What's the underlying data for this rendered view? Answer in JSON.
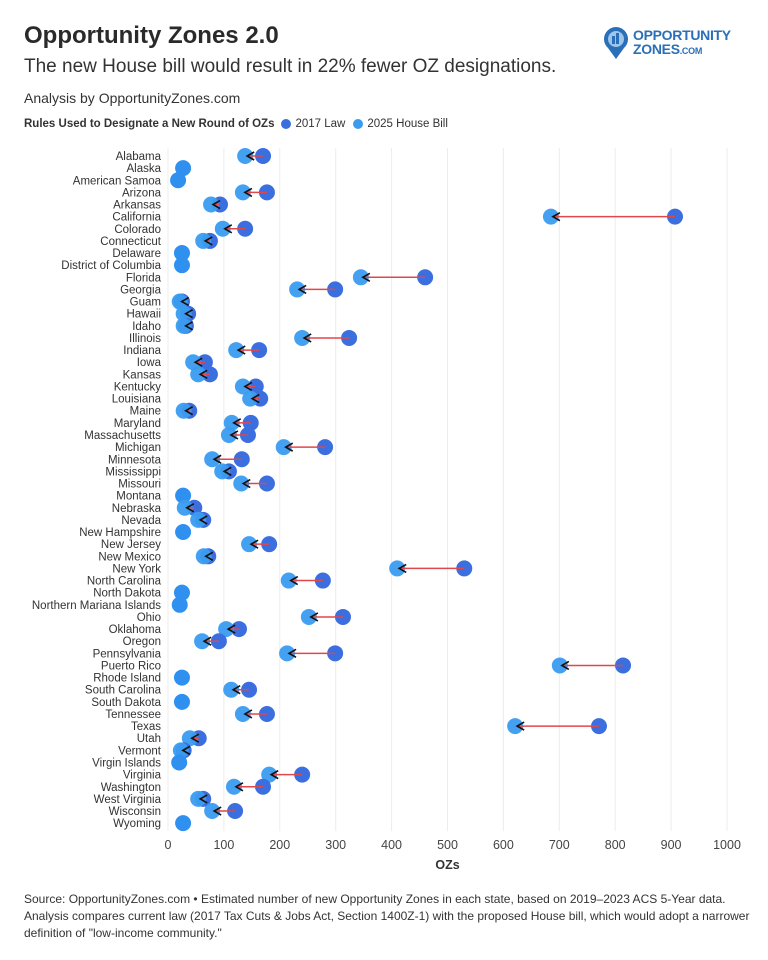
{
  "header": {
    "title": "Opportunity Zones 2.0",
    "subtitle": "The new House bill would result in 22% fewer OZ designations.",
    "byline": "Analysis by OpportunityZones.com"
  },
  "logo": {
    "line1": "OPPORTUNITY",
    "line2": "ZONES",
    "suffix": ".COM"
  },
  "legend": {
    "title": "Rules Used to Designate a New Round of OZs",
    "items": [
      {
        "label": "2017 Law",
        "color": "#3b6fdf"
      },
      {
        "label": "2025 House Bill",
        "color": "#3a9cf0"
      }
    ]
  },
  "footer": {
    "source": "Source: OpportunityZones.com • Estimated number of new Opportunity Zones in each state, based on 2019–2023 ACS 5-Year data. Analysis compares current law (2017 Tax Cuts & Jobs Act, Section 1400Z-1) with the proposed House bill, which would adopt a narrower definition of \"low-income community.\""
  },
  "chart_data": {
    "type": "dumbbell",
    "xlabel": "OZs",
    "xlim": [
      0,
      1000
    ],
    "xticks": [
      0,
      100,
      200,
      300,
      400,
      500,
      600,
      700,
      800,
      900,
      1000
    ],
    "grid": true,
    "arrow_color": "#e0474c",
    "series_names": [
      "2017 Law",
      "2025 House Bill"
    ],
    "rows": [
      {
        "state": "Alabama",
        "law2017": 170,
        "bill2025": 138
      },
      {
        "state": "Alaska",
        "law2017": 27,
        "bill2025": 27
      },
      {
        "state": "American Samoa",
        "law2017": 18,
        "bill2025": 18
      },
      {
        "state": "Arizona",
        "law2017": 177,
        "bill2025": 134
      },
      {
        "state": "Arkansas",
        "law2017": 93,
        "bill2025": 77
      },
      {
        "state": "California",
        "law2017": 907,
        "bill2025": 685
      },
      {
        "state": "Colorado",
        "law2017": 138,
        "bill2025": 98
      },
      {
        "state": "Connecticut",
        "law2017": 75,
        "bill2025": 63
      },
      {
        "state": "Delaware",
        "law2017": 25,
        "bill2025": 25
      },
      {
        "state": "District of Columbia",
        "law2017": 25,
        "bill2025": 25
      },
      {
        "state": "Florida",
        "law2017": 460,
        "bill2025": 345
      },
      {
        "state": "Georgia",
        "law2017": 299,
        "bill2025": 231
      },
      {
        "state": "Guam",
        "law2017": 25,
        "bill2025": 21
      },
      {
        "state": "Hawaii",
        "law2017": 36,
        "bill2025": 28
      },
      {
        "state": "Idaho",
        "law2017": 32,
        "bill2025": 28
      },
      {
        "state": "Illinois",
        "law2017": 324,
        "bill2025": 240
      },
      {
        "state": "Indiana",
        "law2017": 163,
        "bill2025": 122
      },
      {
        "state": "Iowa",
        "law2017": 66,
        "bill2025": 45
      },
      {
        "state": "Kansas",
        "law2017": 75,
        "bill2025": 54
      },
      {
        "state": "Kentucky",
        "law2017": 157,
        "bill2025": 134
      },
      {
        "state": "Louisiana",
        "law2017": 165,
        "bill2025": 147
      },
      {
        "state": "Maine",
        "law2017": 38,
        "bill2025": 28
      },
      {
        "state": "Maryland",
        "law2017": 148,
        "bill2025": 114
      },
      {
        "state": "Massachusetts",
        "law2017": 143,
        "bill2025": 109
      },
      {
        "state": "Michigan",
        "law2017": 281,
        "bill2025": 207
      },
      {
        "state": "Minnesota",
        "law2017": 132,
        "bill2025": 79
      },
      {
        "state": "Mississippi",
        "law2017": 109,
        "bill2025": 97
      },
      {
        "state": "Missouri",
        "law2017": 177,
        "bill2025": 131
      },
      {
        "state": "Montana",
        "law2017": 27,
        "bill2025": 27
      },
      {
        "state": "Nebraska",
        "law2017": 47,
        "bill2025": 30
      },
      {
        "state": "Nevada",
        "law2017": 63,
        "bill2025": 54
      },
      {
        "state": "New Hampshire",
        "law2017": 27,
        "bill2025": 27
      },
      {
        "state": "New Jersey",
        "law2017": 181,
        "bill2025": 145
      },
      {
        "state": "New Mexico",
        "law2017": 72,
        "bill2025": 64
      },
      {
        "state": "New York",
        "law2017": 530,
        "bill2025": 410
      },
      {
        "state": "North Carolina",
        "law2017": 277,
        "bill2025": 216
      },
      {
        "state": "North Dakota",
        "law2017": 25,
        "bill2025": 25
      },
      {
        "state": "Northern Mariana Islands",
        "law2017": 21,
        "bill2025": 21
      },
      {
        "state": "Ohio",
        "law2017": 313,
        "bill2025": 252
      },
      {
        "state": "Oklahoma",
        "law2017": 127,
        "bill2025": 104
      },
      {
        "state": "Oregon",
        "law2017": 91,
        "bill2025": 61
      },
      {
        "state": "Pennsylvania",
        "law2017": 299,
        "bill2025": 213
      },
      {
        "state": "Puerto Rico",
        "law2017": 814,
        "bill2025": 701
      },
      {
        "state": "Rhode Island",
        "law2017": 25,
        "bill2025": 25
      },
      {
        "state": "South Carolina",
        "law2017": 145,
        "bill2025": 113
      },
      {
        "state": "South Dakota",
        "law2017": 25,
        "bill2025": 25
      },
      {
        "state": "Tennessee",
        "law2017": 177,
        "bill2025": 134
      },
      {
        "state": "Texas",
        "law2017": 771,
        "bill2025": 621
      },
      {
        "state": "Utah",
        "law2017": 55,
        "bill2025": 39
      },
      {
        "state": "Vermont",
        "law2017": 28,
        "bill2025": 23
      },
      {
        "state": "Virgin Islands",
        "law2017": 20,
        "bill2025": 20
      },
      {
        "state": "Virginia",
        "law2017": 240,
        "bill2025": 181
      },
      {
        "state": "Washington",
        "law2017": 170,
        "bill2025": 118
      },
      {
        "state": "West Virginia",
        "law2017": 63,
        "bill2025": 54
      },
      {
        "state": "Wisconsin",
        "law2017": 120,
        "bill2025": 79
      },
      {
        "state": "Wyoming",
        "law2017": 27,
        "bill2025": 27
      }
    ]
  }
}
